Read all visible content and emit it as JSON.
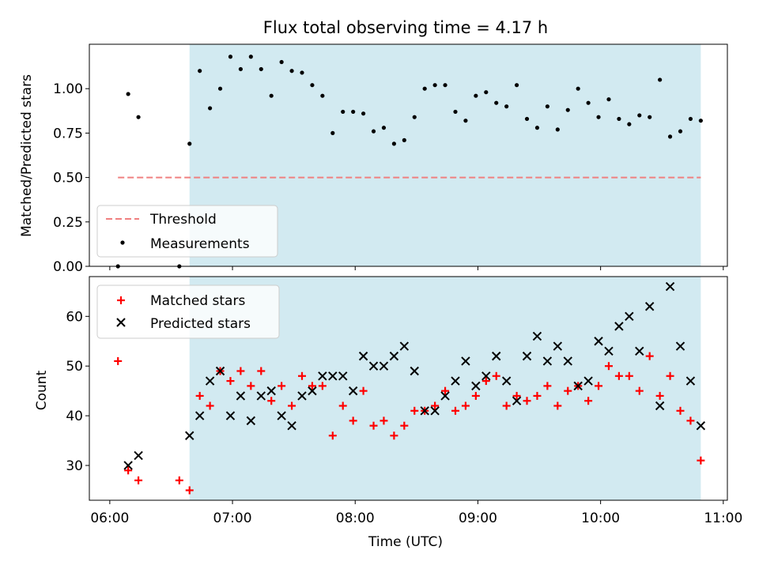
{
  "title": "Flux total observing time = 4.17 h",
  "chart_data": [
    {
      "type": "scatter",
      "ylabel": "Matched/Predicted stars",
      "xlabel": "",
      "xlim": [
        "05:50",
        "11:02"
      ],
      "ylim": [
        0,
        1.25
      ],
      "yticks": [
        0,
        0.25,
        0.5,
        0.75,
        1.0
      ],
      "ytick_labels": [
        "0.00",
        "0.25",
        "0.50",
        "0.75",
        "1.00"
      ],
      "observing_window": [
        "06:39",
        "10:49"
      ],
      "shade_color": "#add8e6",
      "legend_position": "lower-left",
      "threshold": {
        "name": "Threshold",
        "value": 0.5,
        "x_range": [
          "06:04",
          "10:49"
        ],
        "color": "#f08080",
        "style": "dashed"
      },
      "series": [
        {
          "name": "Measurements",
          "marker": "dot",
          "color": "#000000",
          "points": [
            [
              "06:04",
              0.0
            ],
            [
              "06:09",
              0.97
            ],
            [
              "06:14",
              0.84
            ],
            [
              "06:34",
              0.0
            ],
            [
              "06:39",
              0.69
            ],
            [
              "06:44",
              1.1
            ],
            [
              "06:49",
              0.89
            ],
            [
              "06:54",
              1.0
            ],
            [
              "06:59",
              1.18
            ],
            [
              "07:04",
              1.11
            ],
            [
              "07:09",
              1.18
            ],
            [
              "07:14",
              1.11
            ],
            [
              "07:19",
              0.96
            ],
            [
              "07:24",
              1.15
            ],
            [
              "07:29",
              1.1
            ],
            [
              "07:34",
              1.09
            ],
            [
              "07:39",
              1.02
            ],
            [
              "07:44",
              0.96
            ],
            [
              "07:49",
              0.75
            ],
            [
              "07:54",
              0.87
            ],
            [
              "07:59",
              0.87
            ],
            [
              "08:04",
              0.86
            ],
            [
              "08:09",
              0.76
            ],
            [
              "08:14",
              0.78
            ],
            [
              "08:19",
              0.69
            ],
            [
              "08:24",
              0.71
            ],
            [
              "08:29",
              0.84
            ],
            [
              "08:34",
              1.0
            ],
            [
              "08:39",
              1.02
            ],
            [
              "08:44",
              1.02
            ],
            [
              "08:49",
              0.87
            ],
            [
              "08:54",
              0.82
            ],
            [
              "08:59",
              0.96
            ],
            [
              "09:04",
              0.98
            ],
            [
              "09:09",
              0.92
            ],
            [
              "09:14",
              0.9
            ],
            [
              "09:19",
              1.02
            ],
            [
              "09:24",
              0.83
            ],
            [
              "09:29",
              0.78
            ],
            [
              "09:34",
              0.9
            ],
            [
              "09:39",
              0.77
            ],
            [
              "09:44",
              0.88
            ],
            [
              "09:49",
              1.0
            ],
            [
              "09:54",
              0.92
            ],
            [
              "09:59",
              0.84
            ],
            [
              "10:04",
              0.94
            ],
            [
              "10:09",
              0.83
            ],
            [
              "10:14",
              0.8
            ],
            [
              "10:19",
              0.85
            ],
            [
              "10:24",
              0.84
            ],
            [
              "10:29",
              1.05
            ],
            [
              "10:34",
              0.73
            ],
            [
              "10:39",
              0.76
            ],
            [
              "10:44",
              0.83
            ],
            [
              "10:49",
              0.82
            ]
          ]
        }
      ]
    },
    {
      "type": "scatter",
      "xlabel": "Time (UTC)",
      "ylabel": "Count",
      "xlim": [
        "05:50",
        "11:02"
      ],
      "ylim": [
        23,
        68
      ],
      "yticks": [
        30,
        40,
        50,
        60
      ],
      "ytick_labels": [
        "30",
        "40",
        "50",
        "60"
      ],
      "xticks": [
        "06:00",
        "07:00",
        "08:00",
        "09:00",
        "10:00",
        "11:00"
      ],
      "xtick_labels": [
        "06:00",
        "07:00",
        "08:00",
        "09:00",
        "10:00",
        "11:00"
      ],
      "observing_window": [
        "06:39",
        "10:49"
      ],
      "shade_color": "#add8e6",
      "legend_position": "top-left",
      "series": [
        {
          "name": "Matched stars",
          "marker": "plus",
          "color": "#ff0000",
          "points": [
            [
              "06:04",
              51
            ],
            [
              "06:09",
              29
            ],
            [
              "06:14",
              27
            ],
            [
              "06:34",
              27
            ],
            [
              "06:39",
              25
            ],
            [
              "06:44",
              44
            ],
            [
              "06:49",
              42
            ],
            [
              "06:54",
              49
            ],
            [
              "06:59",
              47
            ],
            [
              "07:04",
              49
            ],
            [
              "07:09",
              46
            ],
            [
              "07:14",
              49
            ],
            [
              "07:19",
              43
            ],
            [
              "07:24",
              46
            ],
            [
              "07:29",
              42
            ],
            [
              "07:34",
              48
            ],
            [
              "07:39",
              46
            ],
            [
              "07:44",
              46
            ],
            [
              "07:49",
              36
            ],
            [
              "07:54",
              42
            ],
            [
              "07:59",
              39
            ],
            [
              "08:04",
              45
            ],
            [
              "08:09",
              38
            ],
            [
              "08:14",
              39
            ],
            [
              "08:19",
              36
            ],
            [
              "08:24",
              38
            ],
            [
              "08:29",
              41
            ],
            [
              "08:34",
              41
            ],
            [
              "08:39",
              42
            ],
            [
              "08:44",
              45
            ],
            [
              "08:49",
              41
            ],
            [
              "08:54",
              42
            ],
            [
              "08:59",
              44
            ],
            [
              "09:04",
              47
            ],
            [
              "09:09",
              48
            ],
            [
              "09:14",
              42
            ],
            [
              "09:19",
              44
            ],
            [
              "09:24",
              43
            ],
            [
              "09:29",
              44
            ],
            [
              "09:34",
              46
            ],
            [
              "09:39",
              42
            ],
            [
              "09:44",
              45
            ],
            [
              "09:49",
              46
            ],
            [
              "09:54",
              43
            ],
            [
              "09:59",
              46
            ],
            [
              "10:04",
              50
            ],
            [
              "10:09",
              48
            ],
            [
              "10:14",
              48
            ],
            [
              "10:19",
              45
            ],
            [
              "10:24",
              52
            ],
            [
              "10:29",
              44
            ],
            [
              "10:34",
              48
            ],
            [
              "10:39",
              41
            ],
            [
              "10:44",
              39
            ],
            [
              "10:49",
              31
            ]
          ]
        },
        {
          "name": "Predicted stars",
          "marker": "x",
          "color": "#000000",
          "points": [
            [
              "06:09",
              30
            ],
            [
              "06:14",
              32
            ],
            [
              "06:39",
              36
            ],
            [
              "06:44",
              40
            ],
            [
              "06:49",
              47
            ],
            [
              "06:54",
              49
            ],
            [
              "06:59",
              40
            ],
            [
              "07:04",
              44
            ],
            [
              "07:09",
              39
            ],
            [
              "07:14",
              44
            ],
            [
              "07:19",
              45
            ],
            [
              "07:24",
              40
            ],
            [
              "07:29",
              38
            ],
            [
              "07:34",
              44
            ],
            [
              "07:39",
              45
            ],
            [
              "07:44",
              48
            ],
            [
              "07:49",
              48
            ],
            [
              "07:54",
              48
            ],
            [
              "07:59",
              45
            ],
            [
              "08:04",
              52
            ],
            [
              "08:09",
              50
            ],
            [
              "08:14",
              50
            ],
            [
              "08:19",
              52
            ],
            [
              "08:24",
              54
            ],
            [
              "08:29",
              49
            ],
            [
              "08:34",
              41
            ],
            [
              "08:39",
              41
            ],
            [
              "08:44",
              44
            ],
            [
              "08:49",
              47
            ],
            [
              "08:54",
              51
            ],
            [
              "08:59",
              46
            ],
            [
              "09:04",
              48
            ],
            [
              "09:09",
              52
            ],
            [
              "09:14",
              47
            ],
            [
              "09:19",
              43
            ],
            [
              "09:24",
              52
            ],
            [
              "09:29",
              56
            ],
            [
              "09:34",
              51
            ],
            [
              "09:39",
              54
            ],
            [
              "09:44",
              51
            ],
            [
              "09:49",
              46
            ],
            [
              "09:54",
              47
            ],
            [
              "09:59",
              55
            ],
            [
              "10:04",
              53
            ],
            [
              "10:09",
              58
            ],
            [
              "10:14",
              60
            ],
            [
              "10:19",
              53
            ],
            [
              "10:24",
              62
            ],
            [
              "10:29",
              42
            ],
            [
              "10:34",
              66
            ],
            [
              "10:39",
              54
            ],
            [
              "10:44",
              47
            ],
            [
              "10:49",
              38
            ]
          ]
        }
      ]
    }
  ]
}
